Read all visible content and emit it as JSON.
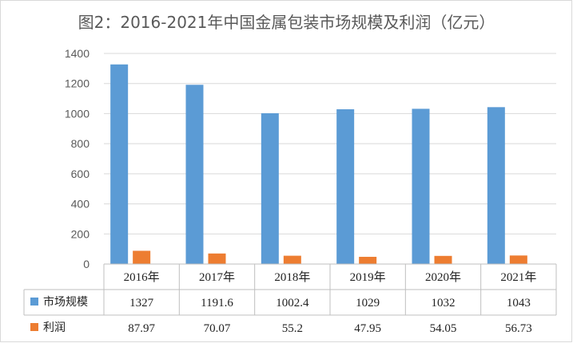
{
  "chart_data": {
    "type": "bar",
    "title": "图2：2016-2021年中国金属包装市场规模及利润（亿元）",
    "categories": [
      "2016年",
      "2017年",
      "2018年",
      "2019年",
      "2020年",
      "2021年"
    ],
    "series": [
      {
        "name": "市场规模",
        "color": "#5b9bd5",
        "values": [
          1327,
          1191.6,
          1002.4,
          1029,
          1032,
          1043
        ],
        "labels": [
          "1327",
          "1191.6",
          "1002.4",
          "1029",
          "1032",
          "1043"
        ]
      },
      {
        "name": "利润",
        "color": "#ed7d31",
        "values": [
          87.97,
          70.07,
          55.2,
          47.95,
          54.05,
          56.73
        ],
        "labels": [
          "87.97",
          "70.07",
          "55.2",
          "47.95",
          "54.05",
          "56.73"
        ]
      }
    ],
    "ylim": [
      0,
      1400
    ],
    "yticks": [
      "0",
      "200",
      "400",
      "600",
      "800",
      "1000",
      "1200",
      "1400"
    ],
    "grid": true,
    "legend": "data-table"
  }
}
